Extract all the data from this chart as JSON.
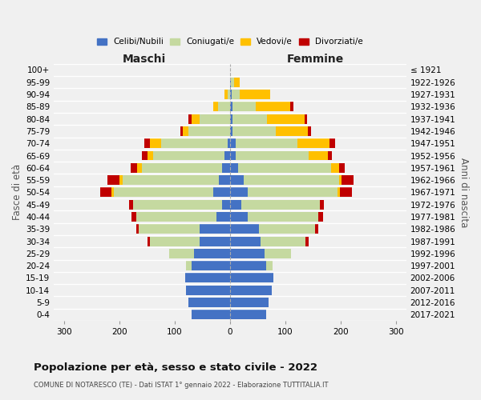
{
  "age_groups": [
    "0-4",
    "5-9",
    "10-14",
    "15-19",
    "20-24",
    "25-29",
    "30-34",
    "35-39",
    "40-44",
    "45-49",
    "50-54",
    "55-59",
    "60-64",
    "65-69",
    "70-74",
    "75-79",
    "80-84",
    "85-89",
    "90-94",
    "95-99",
    "100+"
  ],
  "birth_years": [
    "2017-2021",
    "2012-2016",
    "2007-2011",
    "2002-2006",
    "1997-2001",
    "1992-1996",
    "1987-1991",
    "1982-1986",
    "1977-1981",
    "1972-1976",
    "1967-1971",
    "1962-1966",
    "1957-1961",
    "1952-1956",
    "1947-1951",
    "1942-1946",
    "1937-1941",
    "1932-1936",
    "1927-1931",
    "1922-1926",
    "≤ 1921"
  ],
  "male_celibi": [
    70,
    75,
    80,
    82,
    70,
    65,
    55,
    55,
    25,
    15,
    30,
    20,
    15,
    10,
    5,
    0,
    0,
    0,
    0,
    0,
    0
  ],
  "male_coniugati": [
    0,
    0,
    0,
    0,
    10,
    45,
    90,
    110,
    145,
    160,
    180,
    175,
    145,
    130,
    120,
    75,
    55,
    22,
    5,
    0,
    0
  ],
  "male_vedovi": [
    0,
    0,
    0,
    0,
    0,
    0,
    0,
    0,
    0,
    0,
    5,
    5,
    8,
    10,
    20,
    10,
    15,
    8,
    5,
    0,
    0
  ],
  "male_divorziati": [
    0,
    0,
    0,
    0,
    0,
    0,
    5,
    5,
    8,
    8,
    20,
    22,
    12,
    10,
    10,
    5,
    5,
    0,
    0,
    0,
    0
  ],
  "female_nubili": [
    65,
    70,
    75,
    78,
    65,
    62,
    55,
    52,
    32,
    20,
    32,
    25,
    15,
    10,
    10,
    5,
    5,
    5,
    3,
    2,
    0
  ],
  "female_coniugate": [
    0,
    0,
    0,
    0,
    12,
    48,
    82,
    102,
    128,
    142,
    162,
    172,
    168,
    132,
    112,
    78,
    62,
    42,
    15,
    5,
    0
  ],
  "female_vedove": [
    0,
    0,
    0,
    0,
    0,
    0,
    0,
    0,
    0,
    0,
    5,
    5,
    15,
    35,
    58,
    58,
    68,
    62,
    55,
    10,
    0
  ],
  "female_divorziate": [
    0,
    0,
    0,
    0,
    0,
    0,
    5,
    5,
    8,
    8,
    22,
    22,
    10,
    8,
    10,
    5,
    5,
    5,
    0,
    0,
    0
  ],
  "colors": {
    "celibi": "#4472c4",
    "coniugati": "#c5d9a0",
    "vedovi": "#ffc000",
    "divorziati": "#c00000"
  },
  "xlim": 320,
  "title": "Popolazione per età, sesso e stato civile - 2022",
  "subtitle": "COMUNE DI NOTARESCO (TE) - Dati ISTAT 1° gennaio 2022 - Elaborazione TUTTITALIA.IT",
  "ylabel": "Fasce di età",
  "ylabel_right": "Anni di nascita",
  "legend_labels": [
    "Celibi/Nubili",
    "Coniugati/e",
    "Vedovi/e",
    "Divorziati/e"
  ],
  "maschi_label": "Maschi",
  "femmine_label": "Femmine",
  "bg_color": "#f0f0f0",
  "grid_color": "#ffffff"
}
